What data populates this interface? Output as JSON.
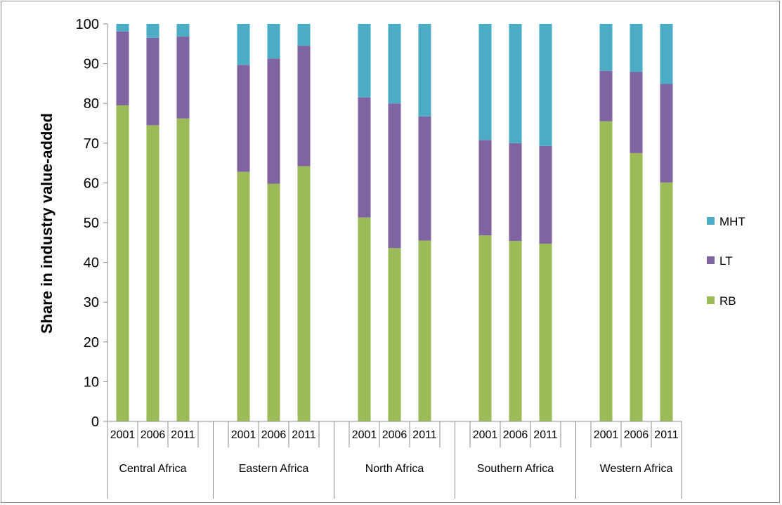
{
  "chart_data": {
    "type": "bar",
    "stacked": true,
    "title": "",
    "xlabel": "",
    "ylabel": "Share in industry value-added",
    "ylim": [
      0,
      100
    ],
    "yticks": [
      0,
      10,
      20,
      30,
      40,
      50,
      60,
      70,
      80,
      90,
      100
    ],
    "grid": false,
    "legend_position": "right",
    "groups": [
      {
        "name": "Central Africa",
        "years": [
          "2001",
          "2006",
          "2011"
        ]
      },
      {
        "name": "Eastern Africa",
        "years": [
          "2001",
          "2006",
          "2011"
        ]
      },
      {
        "name": "North Africa",
        "years": [
          "2001",
          "2006",
          "2011"
        ]
      },
      {
        "name": "Southern Africa",
        "years": [
          "2001",
          "2006",
          "2011"
        ]
      },
      {
        "name": "Western Africa",
        "years": [
          "2001",
          "2006",
          "2011"
        ]
      }
    ],
    "series": [
      {
        "name": "RB",
        "color": "#9bbb59",
        "values": [
          79.5,
          74.5,
          76.2,
          62.8,
          59.8,
          64.2,
          51.3,
          43.6,
          45.5,
          46.8,
          45.4,
          44.7,
          75.5,
          67.5,
          60.1
        ]
      },
      {
        "name": "LT",
        "color": "#8064a2",
        "values": [
          18.6,
          22.0,
          20.6,
          26.9,
          31.5,
          30.3,
          30.2,
          36.4,
          31.2,
          24.0,
          24.6,
          24.6,
          12.7,
          20.4,
          24.8
        ]
      },
      {
        "name": "MHT",
        "color": "#4bacc6",
        "values": [
          1.9,
          3.5,
          3.2,
          10.3,
          8.7,
          5.5,
          18.5,
          20.0,
          23.3,
          29.2,
          30.0,
          30.7,
          11.8,
          12.1,
          15.1
        ]
      }
    ],
    "legend_order": [
      "MHT",
      "LT",
      "RB"
    ]
  }
}
